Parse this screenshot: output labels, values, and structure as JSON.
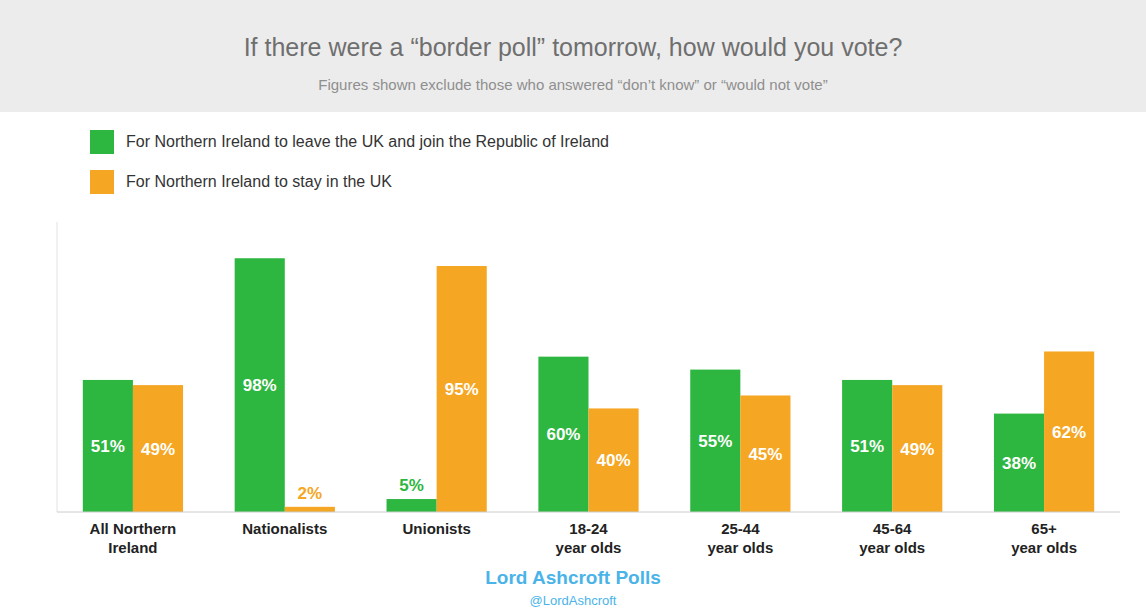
{
  "chart_data": {
    "type": "bar",
    "title": "If there were a “border poll” tomorrow, how would you vote?",
    "subtitle": "Figures shown exclude those who answered “don’t know” or “would not vote”",
    "categories": [
      "All Northern\nIreland",
      "Nationalists",
      "Unionists",
      "18-24\nyear olds",
      "25-44\nyear olds",
      "45-64\nyear olds",
      "65+\nyear olds"
    ],
    "series": [
      {
        "name": "For Northern Ireland to leave the UK and join the Republic of Ireland",
        "color": "#2db640",
        "values": [
          51,
          98,
          5,
          60,
          55,
          51,
          38
        ],
        "value_labels": [
          "51%",
          "98%",
          "5%",
          "60%",
          "55%",
          "51%",
          "38%"
        ]
      },
      {
        "name": "For Northern Ireland to stay in the UK",
        "color": "#f5a623",
        "values": [
          49,
          2,
          95,
          40,
          45,
          49,
          62
        ],
        "value_labels": [
          "49%",
          "2%",
          "95%",
          "40%",
          "45%",
          "49%",
          "62%"
        ]
      }
    ],
    "ylim": [
      0,
      112
    ],
    "data_labels": true,
    "tick_labels": "x",
    "grid": false,
    "legend": "top-left",
    "annotations": [
      "Lord Ashcroft Polls",
      "@LordAshcroft"
    ]
  }
}
